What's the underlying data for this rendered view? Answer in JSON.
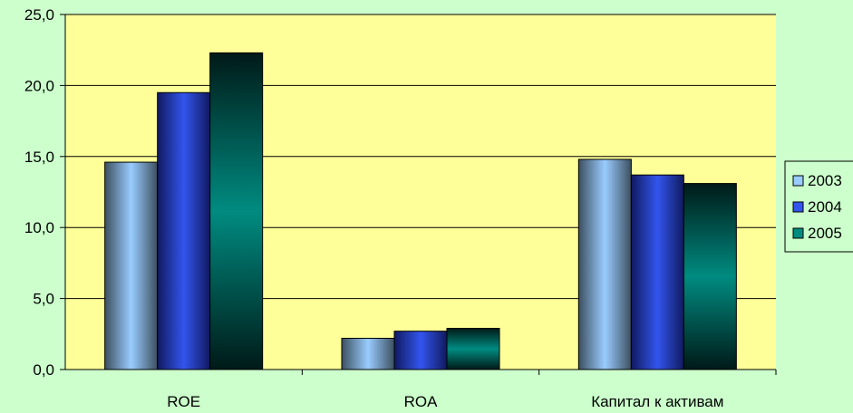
{
  "chart_data": {
    "type": "bar",
    "categories": [
      "ROE",
      "ROA",
      "Капитал к активам"
    ],
    "series": [
      {
        "name": "2003",
        "values": [
          14.6,
          2.2,
          14.8
        ]
      },
      {
        "name": "2004",
        "values": [
          19.5,
          2.7,
          13.7
        ]
      },
      {
        "name": "2005",
        "values": [
          22.3,
          2.9,
          13.1
        ]
      }
    ],
    "ylim": [
      0,
      25
    ],
    "yticks": [
      "0,0",
      "5,0",
      "10,0",
      "15,0",
      "20,0",
      "25,0"
    ],
    "grid": true,
    "legend_position": "right",
    "colors": {
      "background": "#ccffcc",
      "plot_area": "#ffff99",
      "s2003": "#99ccff",
      "s2004": "#3355ee",
      "s2005": "#008b80"
    }
  }
}
